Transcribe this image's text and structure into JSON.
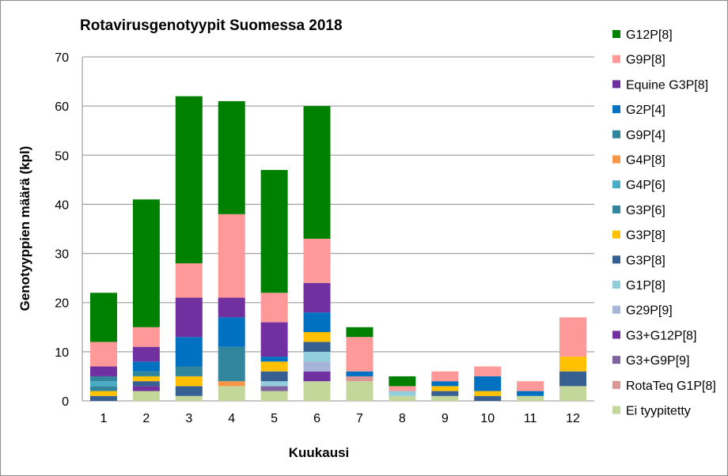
{
  "chart_data": {
    "type": "bar",
    "stacked": true,
    "title": "Rotavirusgenotyypit Suomessa 2018",
    "xlabel": "Kuukausi",
    "ylabel": "Genotyyppien määrä (kpl)",
    "ylim": [
      0,
      70
    ],
    "yticks": [
      0,
      10,
      20,
      30,
      40,
      50,
      60,
      70
    ],
    "grid": true,
    "legend_position": "right",
    "categories": [
      "1",
      "2",
      "3",
      "4",
      "5",
      "6",
      "7",
      "8",
      "9",
      "10",
      "11",
      "12"
    ],
    "series": [
      {
        "name": "Ei tyypitetty",
        "color": "#C4D79B",
        "values": [
          0,
          2,
          1,
          3,
          2,
          4,
          4,
          1,
          1,
          0,
          1,
          3
        ]
      },
      {
        "name": "RotaTeq G1P[8]",
        "color": "#D99694",
        "values": [
          0,
          0,
          0,
          0,
          0,
          0,
          1,
          0,
          0,
          0,
          0,
          0
        ]
      },
      {
        "name": "G3+G9P[9]",
        "color": "#8064A2",
        "values": [
          0,
          0,
          0,
          0,
          1,
          0,
          0,
          0,
          0,
          0,
          0,
          0
        ]
      },
      {
        "name": "G3+G12P[8]",
        "color": "#7030A0",
        "values": [
          0,
          1,
          0,
          0,
          0,
          2,
          0,
          0,
          0,
          0,
          0,
          0
        ]
      },
      {
        "name": "G29P[9]",
        "color": "#A6B5D7",
        "values": [
          0,
          0,
          0,
          0,
          0,
          2,
          0,
          0,
          0,
          0,
          0,
          0
        ]
      },
      {
        "name": "G1P[8]",
        "color": "#92CDDC",
        "values": [
          0,
          0,
          0,
          0,
          1,
          2,
          0,
          1,
          0,
          0,
          0,
          0
        ]
      },
      {
        "name": "G3P[8]",
        "color": "#366092",
        "values": [
          1,
          1,
          2,
          0,
          2,
          2,
          0,
          0,
          1,
          1,
          0,
          3
        ]
      },
      {
        "name": "G3P[8]",
        "color": "#FFC000",
        "values": [
          1,
          1,
          2,
          0,
          2,
          2,
          0,
          0,
          1,
          1,
          0,
          3
        ]
      },
      {
        "name": "G3P[6]",
        "color": "#31859C",
        "values": [
          1,
          0,
          0,
          0,
          0,
          0,
          0,
          0,
          0,
          0,
          0,
          0
        ]
      },
      {
        "name": "G4P[6]",
        "color": "#4BACC6",
        "values": [
          1,
          0,
          0,
          0,
          0,
          0,
          0,
          0,
          0,
          0,
          0,
          0
        ]
      },
      {
        "name": "G4P[8]",
        "color": "#F79646",
        "values": [
          0,
          0,
          0,
          1,
          0,
          0,
          0,
          0,
          0,
          0,
          0,
          0
        ]
      },
      {
        "name": "G9P[4]",
        "color": "#31859C",
        "values": [
          1,
          1,
          2,
          7,
          0,
          0,
          0,
          0,
          0,
          0,
          0,
          0
        ]
      },
      {
        "name": "G2P[4]",
        "color": "#0070C0",
        "values": [
          0,
          2,
          6,
          6,
          1,
          4,
          1,
          0,
          1,
          3,
          1,
          0
        ]
      },
      {
        "name": "Equine G3P[8]",
        "color": "#7030A0",
        "values": [
          2,
          3,
          8,
          4,
          7,
          6,
          0,
          0,
          0,
          0,
          0,
          0
        ]
      },
      {
        "name": "G9P[8]",
        "color": "#FF9999",
        "values": [
          5,
          4,
          7,
          17,
          6,
          9,
          7,
          1,
          2,
          2,
          2,
          8
        ]
      },
      {
        "name": "G12P[8]",
        "color": "#008000",
        "values": [
          10,
          26,
          34,
          23,
          25,
          27,
          2,
          2,
          0,
          0,
          0,
          0
        ]
      }
    ]
  }
}
